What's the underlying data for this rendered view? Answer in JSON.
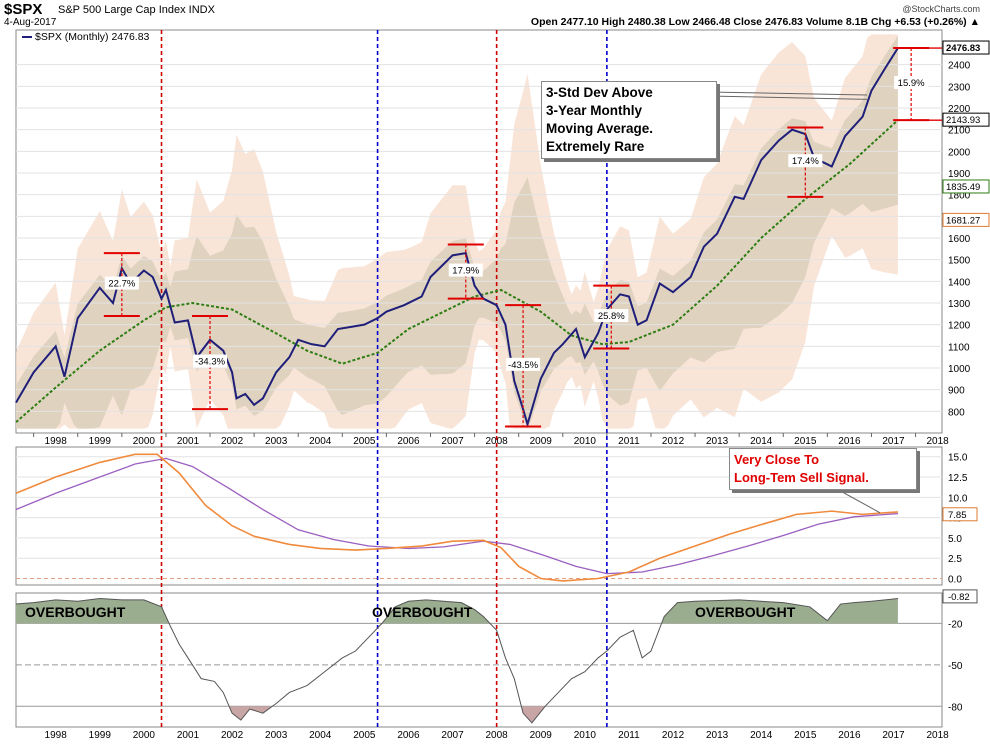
{
  "header": {
    "ticker": "$SPX",
    "description": "S&P 500 Large Cap Index INDX",
    "date": "4-Aug-2017",
    "ohlc": "Open 2477.10  High 2480.38  Low 2466.48  Close 2476.83  Volume 8.1B  Chg +6.53 (+0.26%) ▲",
    "brand": "@StockCharts.com"
  },
  "legend": {
    "label": "$SPX (Monthly) 2476.83"
  },
  "annotations": {
    "box_main": [
      "3-Std Dev Above",
      "3-Year Monthly",
      "Moving Average.",
      "Extremely Rare"
    ],
    "box_macd": [
      "Very Close To",
      "Long-Tem Sell Signal."
    ],
    "overbought": [
      "OVERBOUGHT",
      "OVERBOUGHT",
      "OVERBOUGHT"
    ]
  },
  "colors": {
    "price": "#1f1f7a",
    "ma": "#2e7d12",
    "outer_band": "#f7dccb",
    "inner_band": "#ddd2bf",
    "red_vline": "#cc0000",
    "blue_vline": "#0000cc",
    "macd_orange": "#f08a3c",
    "macd_purple": "#9b5fc0",
    "osc_fill_green": "#9aad8f",
    "osc_fill_red": "#c9a6a6"
  },
  "chart_data": [
    {
      "type": "line",
      "title": "$SPX (Monthly) 2476.83",
      "xlim": [
        1997.6,
        2018.6
      ],
      "ylim": [
        700,
        2560
      ],
      "x_ticks": [
        "1998",
        "1999",
        "2000",
        "2001",
        "2002",
        "2003",
        "2004",
        "2005",
        "2006",
        "2007",
        "2008",
        "2009",
        "2010",
        "2011",
        "2012",
        "2013",
        "2014",
        "2015",
        "2016",
        "2017",
        "2018"
      ],
      "y_ticks": [
        800,
        900,
        1000,
        1100,
        1200,
        1300,
        1400,
        1500,
        1600,
        1700,
        1800,
        1900,
        2000,
        2100,
        2200,
        2300,
        2400
      ],
      "y_tick_labels": [
        "800",
        "900",
        "1000",
        "1100",
        "1200",
        "1300",
        "1400",
        "1500",
        "1600",
        "1700",
        "1800",
        "1900",
        "2000",
        "2100",
        "2200",
        "2300",
        "2400"
      ],
      "series": [
        {
          "name": "$SPX (Monthly)",
          "x": [
            1997.6,
            1998.0,
            1998.5,
            1998.7,
            1999.0,
            1999.5,
            1999.8,
            2000.0,
            2000.2,
            2000.5,
            2000.7,
            2000.9,
            2001.0,
            2001.2,
            2001.5,
            2001.7,
            2002.0,
            2002.3,
            2002.5,
            2002.6,
            2002.8,
            2003.0,
            2003.2,
            2003.5,
            2003.8,
            2004.0,
            2004.3,
            2004.6,
            2004.9,
            2005.2,
            2005.5,
            2005.8,
            2006.0,
            2006.4,
            2006.8,
            2007.0,
            2007.3,
            2007.5,
            2007.8,
            2008.0,
            2008.2,
            2008.5,
            2008.7,
            2008.9,
            2009.1,
            2009.2,
            2009.5,
            2009.8,
            2010.0,
            2010.3,
            2010.5,
            2010.8,
            2011.0,
            2011.3,
            2011.5,
            2011.7,
            2011.9,
            2012.2,
            2012.5,
            2012.9,
            2013.2,
            2013.5,
            2013.9,
            2014.1,
            2014.5,
            2014.9,
            2015.2,
            2015.5,
            2015.7,
            2016.0,
            2016.1,
            2016.4,
            2016.8,
            2017.0,
            2017.3,
            2017.6
          ],
          "values": [
            840,
            980,
            1100,
            960,
            1230,
            1370,
            1300,
            1460,
            1390,
            1450,
            1420,
            1320,
            1360,
            1210,
            1220,
            1050,
            1130,
            1080,
            980,
            860,
            880,
            830,
            860,
            980,
            1050,
            1130,
            1110,
            1100,
            1180,
            1190,
            1200,
            1230,
            1260,
            1290,
            1330,
            1420,
            1480,
            1520,
            1530,
            1380,
            1320,
            1290,
            1200,
            940,
            810,
            740,
            950,
            1070,
            1110,
            1180,
            1050,
            1160,
            1270,
            1340,
            1330,
            1200,
            1220,
            1390,
            1350,
            1420,
            1560,
            1620,
            1790,
            1780,
            1960,
            2050,
            2100,
            2080,
            1970,
            1940,
            1930,
            2070,
            2160,
            2280,
            2380,
            2476.83
          ]
        },
        {
          "name": "3-Year Moving Average",
          "x": [
            1997.6,
            1998.5,
            1999.5,
            2000.5,
            2001.0,
            2001.6,
            2002.5,
            2003.5,
            2004.2,
            2005.0,
            2005.8,
            2006.5,
            2007.5,
            2008.0,
            2008.6,
            2009.5,
            2010.2,
            2010.9,
            2011.5,
            2012.5,
            2013.5,
            2014.5,
            2015.5,
            2016.5,
            2017.6
          ],
          "values": [
            750,
            910,
            1080,
            1220,
            1280,
            1300,
            1270,
            1160,
            1080,
            1020,
            1070,
            1180,
            1280,
            1330,
            1360,
            1260,
            1150,
            1110,
            1120,
            1200,
            1380,
            1600,
            1780,
            1940,
            2143.93
          ]
        }
      ],
      "right_labels": [
        "2476.83",
        "2143.93",
        "1835.49",
        "1681.27"
      ],
      "percent_annotations": [
        "22.7%",
        "-34.3%",
        "17.9%",
        "-43.5%",
        "25.8%",
        "17.4%",
        "15.9%"
      ]
    },
    {
      "type": "line",
      "xlim": [
        1997.6,
        2018.6
      ],
      "ylim": [
        -0.8,
        16.2
      ],
      "y_ticks": [
        0,
        2.5,
        5,
        7.5,
        10,
        12.5,
        15
      ],
      "y_tick_labels": [
        "0.0",
        "2.5",
        "5.0",
        "7.5",
        "10.0",
        "12.5",
        "15.0"
      ],
      "last_value_label": "7.85",
      "series": [
        {
          "x": [
            1997.6,
            1998.5,
            1999.5,
            2000.3,
            2000.8,
            2001.3,
            2001.9,
            2002.5,
            2003.0,
            2003.8,
            2004.5,
            2005.3,
            2006.0,
            2006.8,
            2007.5,
            2008.2,
            2008.6,
            2009.0,
            2009.5,
            2010.0,
            2010.8,
            2011.5,
            2012.2,
            2013.0,
            2013.8,
            2014.6,
            2015.3,
            2016.1,
            2016.8,
            2017.6
          ],
          "values": [
            10.5,
            12.5,
            14.3,
            15.3,
            15.3,
            13.0,
            9.0,
            6.5,
            5.2,
            4.2,
            3.7,
            3.5,
            3.7,
            4.0,
            4.6,
            4.7,
            3.8,
            1.5,
            0.0,
            -0.3,
            0.0,
            0.8,
            2.5,
            4.0,
            5.5,
            6.8,
            7.9,
            8.3,
            7.9,
            8.2
          ]
        },
        {
          "x": [
            1997.6,
            1998.5,
            1999.5,
            2000.3,
            2001.0,
            2001.6,
            2002.4,
            2003.2,
            2004.0,
            2004.8,
            2005.6,
            2006.5,
            2007.3,
            2008.2,
            2008.8,
            2009.6,
            2010.3,
            2011.0,
            2011.8,
            2012.6,
            2013.4,
            2014.2,
            2015.0,
            2015.8,
            2016.6,
            2017.6
          ],
          "values": [
            8.5,
            10.5,
            12.5,
            14.1,
            14.8,
            13.8,
            11.2,
            8.5,
            6.0,
            4.8,
            4.0,
            3.7,
            3.9,
            4.6,
            4.2,
            2.8,
            1.5,
            0.6,
            0.8,
            1.7,
            2.8,
            4.0,
            5.3,
            6.7,
            7.6,
            8.0
          ]
        }
      ]
    },
    {
      "type": "area",
      "xlim": [
        1997.6,
        2018.6
      ],
      "ylim": [
        -95,
        2
      ],
      "y_ticks": [
        -20,
        -50,
        -80
      ],
      "y_tick_labels": [
        "-20",
        "-50",
        "-80"
      ],
      "last_value_label": "-0.82",
      "x_ticks": [
        "1998",
        "1999",
        "2000",
        "2001",
        "2002",
        "2003",
        "2004",
        "2005",
        "2006",
        "2007",
        "2008",
        "2009",
        "2010",
        "2011",
        "2012",
        "2013",
        "2014",
        "2015",
        "2016",
        "2017",
        "2018"
      ],
      "series": [
        {
          "x": [
            1997.6,
            1998.0,
            1998.5,
            1999.0,
            1999.5,
            2000.0,
            2000.5,
            2000.9,
            2001.1,
            2001.3,
            2001.5,
            2001.8,
            2002.1,
            2002.3,
            2002.5,
            2002.7,
            2002.9,
            2003.2,
            2003.5,
            2003.8,
            2004.2,
            2004.6,
            2005.0,
            2005.3,
            2005.6,
            2005.9,
            2006.2,
            2006.5,
            2006.9,
            2007.3,
            2007.7,
            2008.0,
            2008.2,
            2008.5,
            2008.7,
            2008.9,
            2009.1,
            2009.3,
            2009.6,
            2009.9,
            2010.2,
            2010.5,
            2010.8,
            2011.0,
            2011.3,
            2011.6,
            2011.8,
            2012.0,
            2012.3,
            2012.6,
            2013.0,
            2014.0,
            2015.0,
            2015.6,
            2016.0,
            2016.3,
            2016.6,
            2017.0,
            2017.6
          ],
          "values": [
            -6,
            -5,
            -3,
            -4,
            -2,
            -3,
            -3,
            -8,
            -22,
            -35,
            -45,
            -60,
            -62,
            -70,
            -85,
            -90,
            -82,
            -85,
            -78,
            -70,
            -65,
            -55,
            -45,
            -40,
            -30,
            -20,
            -8,
            -4,
            -3,
            -4,
            -5,
            -10,
            -15,
            -25,
            -45,
            -60,
            -85,
            -92,
            -80,
            -70,
            -60,
            -55,
            -45,
            -40,
            -30,
            -25,
            -45,
            -40,
            -15,
            -5,
            -4,
            -3,
            -5,
            -8,
            -18,
            -6,
            -5,
            -4,
            -2
          ]
        }
      ]
    }
  ]
}
